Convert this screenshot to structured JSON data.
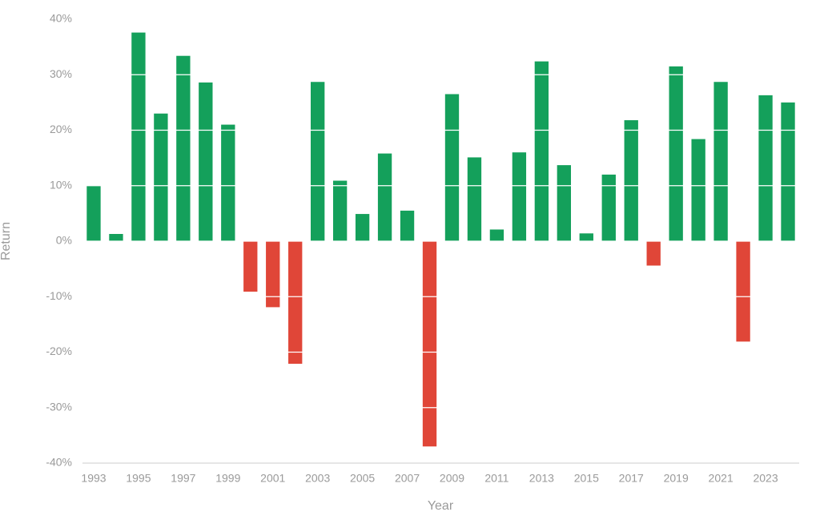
{
  "chart_data": {
    "type": "bar",
    "x_label": "Year",
    "y_label": "Return",
    "x": [
      1993,
      1994,
      1995,
      1996,
      1997,
      1998,
      1999,
      2000,
      2001,
      2002,
      2003,
      2004,
      2005,
      2006,
      2007,
      2008,
      2009,
      2010,
      2011,
      2012,
      2013,
      2014,
      2015,
      2016,
      2017,
      2018,
      2019,
      2020,
      2021,
      2022,
      2023,
      2024
    ],
    "values": [
      10.0,
      1.3,
      37.6,
      23.0,
      33.4,
      28.6,
      21.0,
      -9.1,
      -11.9,
      -22.1,
      28.7,
      10.9,
      4.9,
      15.8,
      5.5,
      -37.0,
      26.5,
      15.1,
      2.1,
      16.0,
      32.4,
      13.7,
      1.4,
      12.0,
      21.8,
      -4.4,
      31.5,
      18.4,
      28.7,
      -18.1,
      26.3,
      25.0
    ],
    "positive_color": "#14a05b",
    "negative_color": "#e04638",
    "xlim": [
      1992.5,
      2024.5
    ],
    "xticks": [
      1993,
      1995,
      1997,
      1999,
      2001,
      2003,
      2005,
      2007,
      2009,
      2011,
      2013,
      2015,
      2017,
      2019,
      2021,
      2023
    ],
    "ylim": [
      -40,
      40
    ],
    "yticks": [
      {
        "value": -40,
        "label": "-40%"
      },
      {
        "value": -30,
        "label": "-30%"
      },
      {
        "value": -20,
        "label": "-20%"
      },
      {
        "value": -10,
        "label": "-10%"
      },
      {
        "value": 0,
        "label": "0%"
      },
      {
        "value": 10,
        "label": "10%"
      },
      {
        "value": 20,
        "label": "20%"
      },
      {
        "value": 30,
        "label": "30%"
      },
      {
        "value": 40,
        "label": "40%"
      }
    ],
    "grid": true
  }
}
